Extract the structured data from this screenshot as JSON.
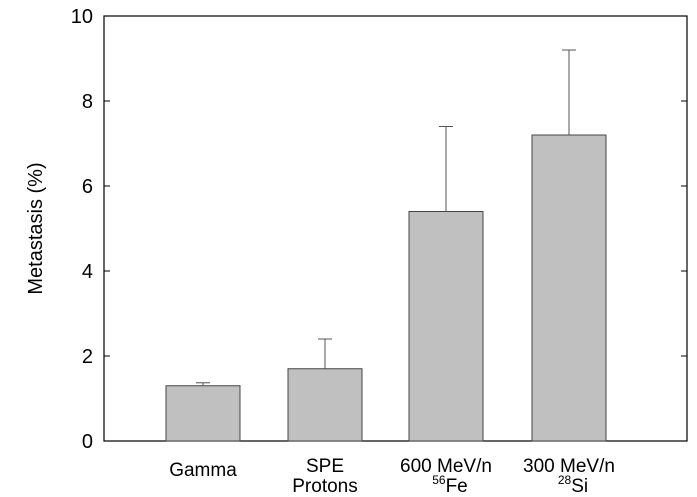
{
  "chart_data": {
    "type": "bar",
    "categories": [
      {
        "line1": "Gamma",
        "line2": null
      },
      {
        "line1": "SPE",
        "line2": "Protons"
      },
      {
        "line1": "600 MeV/n",
        "line2_sup": "56",
        "line2_base": "Fe"
      },
      {
        "line1": "300 MeV/n",
        "line2_sup": "28",
        "line2_base": "Si"
      }
    ],
    "values": [
      1.3,
      1.7,
      5.4,
      7.2
    ],
    "error_upper": [
      1.37,
      2.4,
      7.4,
      9.2
    ],
    "title": "",
    "xlabel": "",
    "ylabel": "Metastasis (%)",
    "ylim": [
      0,
      10
    ],
    "yticks": [
      0,
      2,
      4,
      6,
      8,
      10
    ],
    "grid": false,
    "bar_color": "#c0c0c0",
    "edge_color": "#444444",
    "error_color": "#555555"
  }
}
